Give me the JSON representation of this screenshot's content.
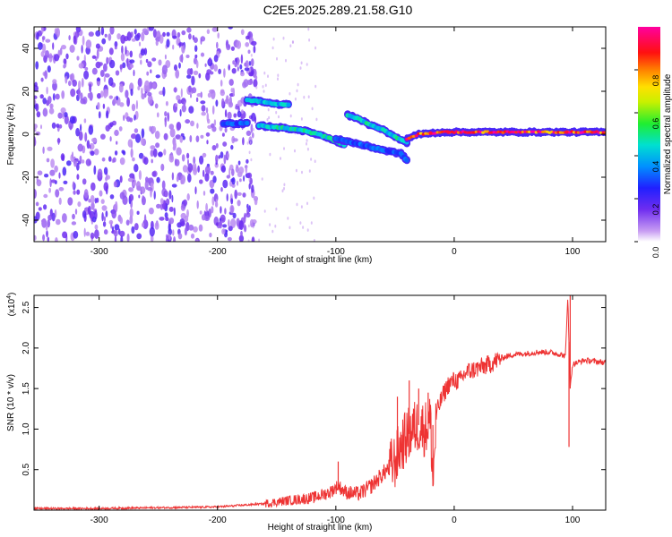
{
  "figure_title": "C2E5.2025.289.21.58.G10",
  "chart_data": [
    {
      "type": "heatmap",
      "xlabel": "Height of straight line (km)",
      "ylabel": "Frequency (Hz)",
      "xlim": [
        -355,
        128
      ],
      "ylim": [
        -50,
        50
      ],
      "xticks": [
        -300,
        -200,
        -100,
        0,
        100
      ],
      "yticks": [
        -40,
        -20,
        0,
        20,
        40
      ],
      "colorbar": {
        "label": "Normalized spectral amplitude",
        "range": [
          0,
          1
        ],
        "ticks": [
          "0.0",
          "0.2",
          "0.4",
          "0.6",
          "0.8"
        ],
        "colormap": "rainbow-violet-to-magenta"
      },
      "noise_region_x": [
        -355,
        -175
      ],
      "tracks": [
        {
          "x": [
            -175,
            -160,
            -150,
            -140
          ],
          "y": [
            16,
            15,
            14,
            14
          ],
          "amplitude": 0.4
        },
        {
          "x": [
            -195,
            -175
          ],
          "y": [
            5,
            5
          ],
          "amplitude": 0.3
        },
        {
          "x": [
            -165,
            -145,
            -130,
            -115,
            -100,
            -93
          ],
          "y": [
            4,
            3,
            2,
            0,
            -3,
            -5
          ],
          "amplitude": 0.45
        },
        {
          "x": [
            -90,
            -80,
            -70,
            -60,
            -50,
            -40
          ],
          "y": [
            9,
            7,
            4,
            2,
            -1,
            -4
          ],
          "amplitude": 0.45
        },
        {
          "x": [
            -100,
            -85,
            -70,
            -55,
            -45,
            -40
          ],
          "y": [
            -2,
            -4,
            -6,
            -8,
            -9,
            -12
          ],
          "amplitude": 0.3
        },
        {
          "x": [
            -40,
            -30,
            -20,
            -10,
            0,
            30,
            60,
            90,
            128
          ],
          "y": [
            -2,
            0,
            0.5,
            1,
            1,
            1,
            1,
            1,
            1
          ],
          "amplitude": 0.9
        }
      ]
    },
    {
      "type": "line",
      "xlabel": "Height of straight line (km)",
      "ylabel": "SNR (10 * v/v)",
      "y_multiplier": "(x10",
      "y_exponent": "4",
      "y_exponent_close": ")",
      "xlim": [
        -355,
        128
      ],
      "ylim": [
        0,
        2.65
      ],
      "xticks": [
        -300,
        -200,
        -100,
        0,
        100
      ],
      "yticks": [
        0.5,
        1.0,
        1.5,
        2.0,
        2.5
      ],
      "series": [
        {
          "color": "#ee3333",
          "x": [
            -355,
            -300,
            -250,
            -200,
            -180,
            -160,
            -140,
            -120,
            -105,
            -98,
            -92,
            -80,
            -70,
            -60,
            -50,
            -45,
            -40,
            -35,
            -30,
            -25,
            -20,
            -18,
            -15,
            -10,
            -5,
            0,
            5,
            10,
            20,
            30,
            40,
            50,
            60,
            70,
            80,
            90,
            94,
            96,
            98,
            100,
            110,
            128
          ],
          "y": [
            0.02,
            0.02,
            0.03,
            0.04,
            0.06,
            0.08,
            0.12,
            0.15,
            0.22,
            0.3,
            0.22,
            0.2,
            0.3,
            0.45,
            0.6,
            0.8,
            0.9,
            1.0,
            1.05,
            1.0,
            1.1,
            0.3,
            1.2,
            1.4,
            1.55,
            1.6,
            1.6,
            1.7,
            1.75,
            1.8,
            1.88,
            1.92,
            1.93,
            1.95,
            1.95,
            1.92,
            1.9,
            2.65,
            1.5,
            1.8,
            1.85,
            1.82
          ],
          "spikes": [
            {
              "x": -98,
              "y": 0.6
            },
            {
              "x": -48,
              "y": 1.4
            },
            {
              "x": -38,
              "y": 1.6
            },
            {
              "x": -30,
              "y": 1.5
            },
            {
              "x": -22,
              "y": 1.45
            },
            {
              "x": -18,
              "y": 1.05
            },
            {
              "x": 97,
              "y": 0.78
            },
            {
              "x": 98,
              "y": 2.65
            }
          ]
        }
      ]
    }
  ]
}
